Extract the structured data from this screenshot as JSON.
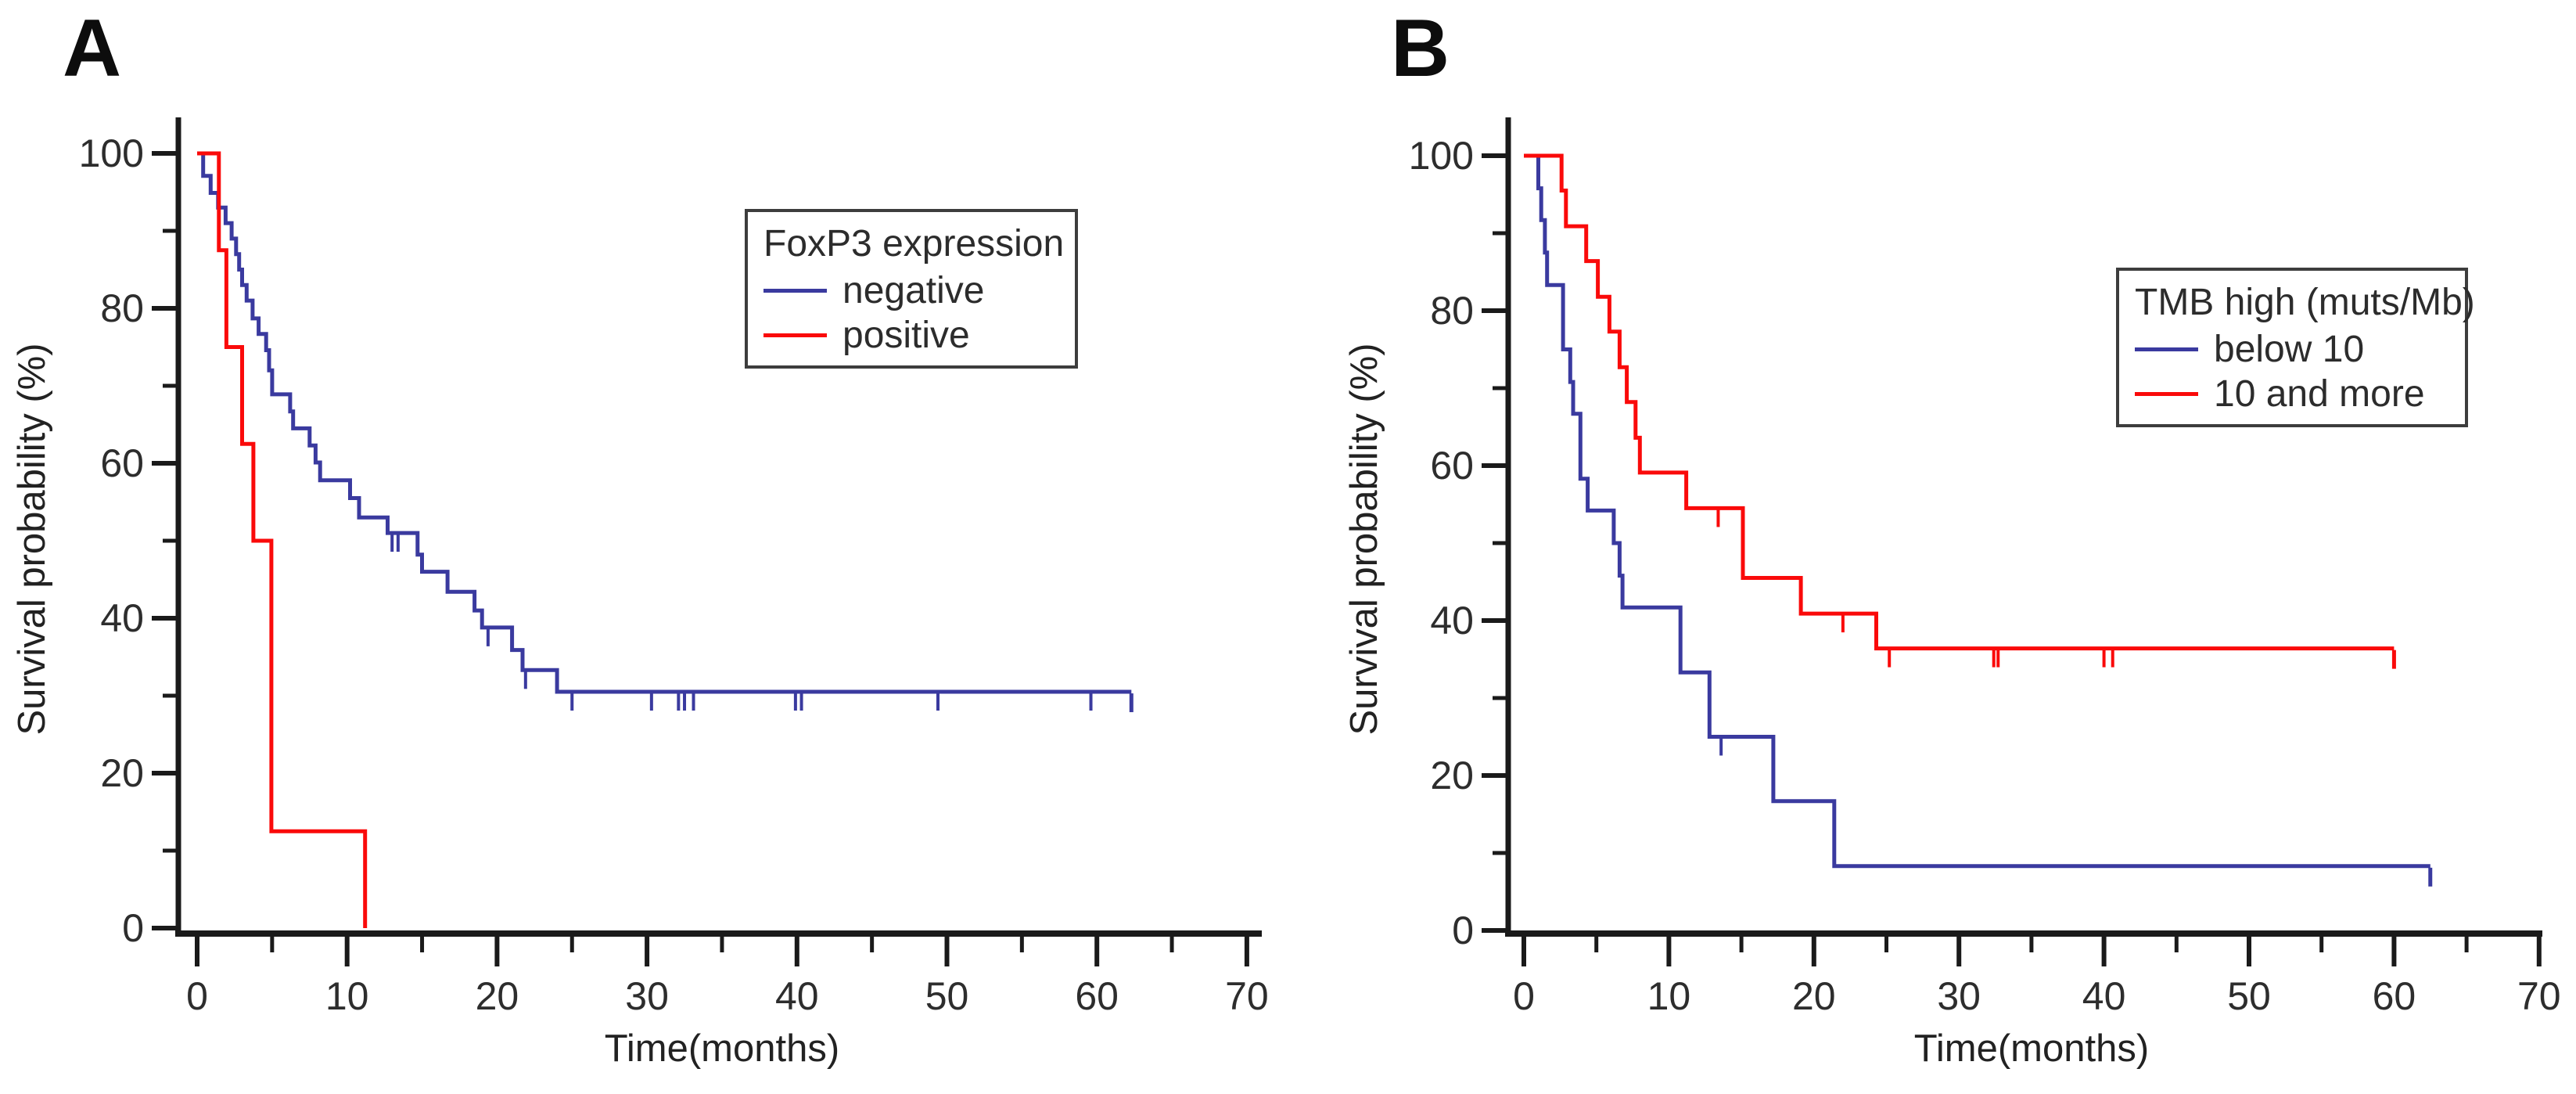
{
  "figure": {
    "panels": [
      {
        "letter": "A",
        "y_axis_title": "Survival probability (%)",
        "x_axis_title": "Time(months)",
        "legend": {
          "title": "FoxP3 expression",
          "items": [
            {
              "label": "negative",
              "color": "#3A3A9F"
            },
            {
              "label": "positive",
              "color": "#FA0A0A"
            }
          ]
        }
      },
      {
        "letter": "B",
        "y_axis_title": "Survival probability (%)",
        "x_axis_title": "Time(months)",
        "legend": {
          "title": "TMB high (muts/Mb)",
          "items": [
            {
              "label": "below 10",
              "color": "#3A3A9F"
            },
            {
              "label": "10 and more",
              "color": "#FA0A0A"
            }
          ]
        }
      }
    ],
    "colors": {
      "axis": "#1a1a1a",
      "tick_label": "#2d2d2d",
      "panel_letter": "#0d0d0d"
    }
  },
  "chart_data": [
    {
      "type": "line",
      "subtype": "kaplan_meier_step",
      "panel": "A",
      "title": "",
      "xlabel": "Time(months)",
      "ylabel": "Survival probability (%)",
      "xlim": [
        0,
        70
      ],
      "ylim": [
        0,
        100
      ],
      "x_ticks": [
        0,
        10,
        20,
        30,
        40,
        50,
        60,
        70
      ],
      "x_minor_ticks": [
        5,
        15,
        25,
        35,
        45,
        55,
        65
      ],
      "y_ticks": [
        0,
        20,
        40,
        60,
        80,
        100
      ],
      "y_minor_ticks": [
        10,
        30,
        50,
        70,
        90
      ],
      "grid": false,
      "legend_title": "FoxP3 expression",
      "legend_position": "upper right inside",
      "series": [
        {
          "name": "negative",
          "color": "#3A3A9F",
          "steps": [
            [
              0,
              100
            ],
            [
              0.4,
              97.1
            ],
            [
              0.9,
              94.9
            ],
            [
              1.4,
              93
            ],
            [
              1.9,
              91
            ],
            [
              2.3,
              89
            ],
            [
              2.6,
              87
            ],
            [
              2.8,
              85
            ],
            [
              3.0,
              83
            ],
            [
              3.3,
              81
            ],
            [
              3.7,
              78.7
            ],
            [
              4.1,
              76.7
            ],
            [
              4.6,
              74.6
            ],
            [
              4.8,
              72
            ],
            [
              5.0,
              68.9
            ],
            [
              6.2,
              66.7
            ],
            [
              6.4,
              64.5
            ],
            [
              7.5,
              62.3
            ],
            [
              7.9,
              60.1
            ],
            [
              8.2,
              57.8
            ],
            [
              10.2,
              55.5
            ],
            [
              10.8,
              53
            ],
            [
              12.7,
              51
            ],
            [
              14.7,
              48.2
            ],
            [
              15.0,
              46
            ],
            [
              16.7,
              43.4
            ],
            [
              18.5,
              41
            ],
            [
              19.0,
              38.8
            ],
            [
              21.0,
              35.9
            ],
            [
              21.7,
              33.3
            ],
            [
              24.0,
              30.5
            ],
            [
              62.3,
              30.5
            ]
          ],
          "censor_times": [
            13.0,
            13.4,
            19.4,
            21.9,
            25.0,
            30.3,
            32.1,
            32.5,
            33.1,
            39.9,
            40.3,
            49.4,
            59.6
          ],
          "end_tick": true
        },
        {
          "name": "positive",
          "color": "#FA0A0A",
          "steps": [
            [
              0,
              100
            ],
            [
              1.45,
              87.5
            ],
            [
              1.95,
              75
            ],
            [
              3.0,
              62.5
            ],
            [
              3.75,
              50
            ],
            [
              4.95,
              12.5
            ],
            [
              11.2,
              0
            ]
          ],
          "censor_times": [],
          "end_tick": false
        }
      ]
    },
    {
      "type": "line",
      "subtype": "kaplan_meier_step",
      "panel": "B",
      "title": "",
      "xlabel": "Time(months)",
      "ylabel": "Survival probability (%)",
      "xlim": [
        0,
        70
      ],
      "ylim": [
        0,
        100
      ],
      "x_ticks": [
        0,
        10,
        20,
        30,
        40,
        50,
        60,
        70
      ],
      "x_minor_ticks": [
        5,
        15,
        25,
        35,
        45,
        55,
        65
      ],
      "y_ticks": [
        0,
        20,
        40,
        60,
        80,
        100
      ],
      "y_minor_ticks": [
        10,
        30,
        50,
        70,
        90
      ],
      "grid": false,
      "legend_title": "TMB high (muts/Mb)",
      "legend_position": "upper right inside",
      "series": [
        {
          "name": "below 10",
          "color": "#3A3A9F",
          "steps": [
            [
              0,
              100
            ],
            [
              1.0,
              95.8
            ],
            [
              1.2,
              91.7
            ],
            [
              1.45,
              87.5
            ],
            [
              1.6,
              83.3
            ],
            [
              2.7,
              75
            ],
            [
              3.2,
              70.8
            ],
            [
              3.4,
              66.7
            ],
            [
              3.9,
              58.3
            ],
            [
              4.4,
              54.2
            ],
            [
              6.2,
              50
            ],
            [
              6.6,
              45.8
            ],
            [
              6.8,
              41.7
            ],
            [
              10.8,
              33.3
            ],
            [
              12.8,
              25
            ],
            [
              17.2,
              16.7
            ],
            [
              21.4,
              8.3
            ],
            [
              62.5,
              8.3
            ]
          ],
          "censor_times": [
            13.6
          ],
          "end_tick": true
        },
        {
          "name": "10 and more",
          "color": "#FA0A0A",
          "steps": [
            [
              0,
              100
            ],
            [
              2.6,
              95.5
            ],
            [
              2.9,
              90.9
            ],
            [
              4.3,
              86.4
            ],
            [
              5.1,
              81.8
            ],
            [
              5.9,
              77.3
            ],
            [
              6.6,
              72.7
            ],
            [
              7.1,
              68.2
            ],
            [
              7.7,
              63.6
            ],
            [
              8.0,
              59.1
            ],
            [
              11.2,
              54.5
            ],
            [
              15.1,
              45.5
            ],
            [
              19.1,
              40.9
            ],
            [
              24.3,
              36.4
            ],
            [
              60.0,
              36.4
            ]
          ],
          "censor_times": [
            13.4,
            22.0,
            25.2,
            32.4,
            32.7,
            40.0,
            40.6
          ],
          "end_tick": true
        }
      ]
    }
  ]
}
